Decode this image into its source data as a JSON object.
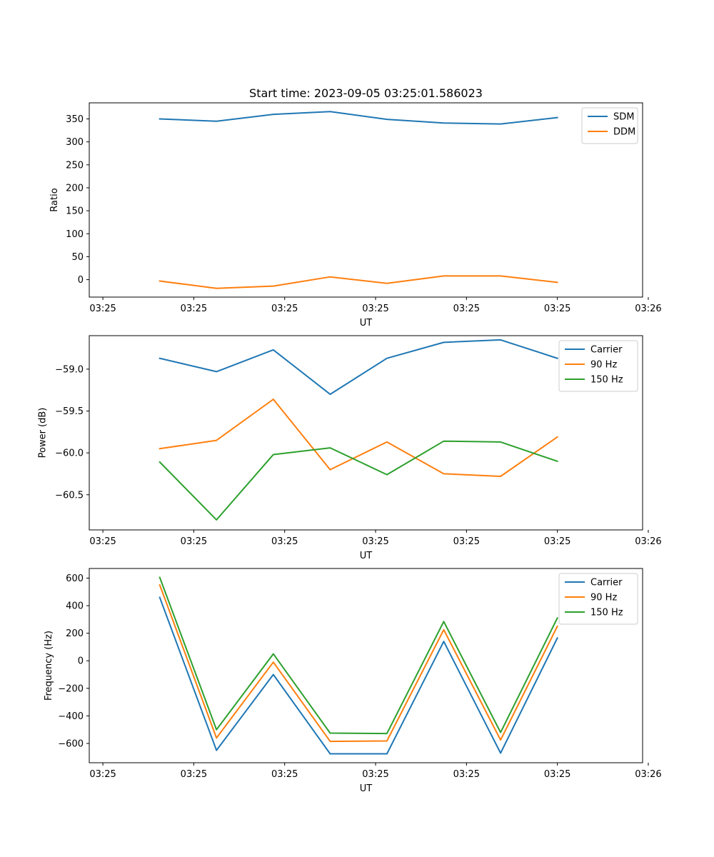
{
  "figure_title": "Start time: 2023-09-05 03:25:01.586023",
  "x_tick_labels": [
    "03:25",
    "03:25",
    "03:25",
    "03:25",
    "03:25",
    "03:25",
    "03:26"
  ],
  "colors": {
    "blue": "#1f77b4",
    "orange": "#ff7f0e",
    "green": "#2ca02c"
  },
  "chart_data": [
    {
      "type": "line",
      "title": "Start time: 2023-09-05 03:25:01.586023",
      "xlabel": "UT",
      "ylabel": "Ratio",
      "x": [
        0.5,
        1.0,
        1.5,
        2.0,
        2.5,
        3.0,
        3.5,
        4.0
      ],
      "xlim": [
        -0.12,
        4.75
      ],
      "ylim": [
        -38,
        385
      ],
      "yticks": [
        0,
        50,
        100,
        150,
        200,
        250,
        300,
        350
      ],
      "ytick_labels": [
        "0",
        "50",
        "100",
        "150",
        "200",
        "250",
        "300",
        "350"
      ],
      "legend_location": "upper right",
      "series": [
        {
          "name": "SDM",
          "color": "#1f77b4",
          "values": [
            350,
            345,
            360,
            366,
            349,
            341,
            339,
            353
          ]
        },
        {
          "name": "DDM",
          "color": "#ff7f0e",
          "values": [
            -3,
            -19,
            -14,
            6,
            -8,
            8,
            8,
            -6
          ]
        }
      ]
    },
    {
      "type": "line",
      "xlabel": "UT",
      "ylabel": "Power (dB)",
      "x": [
        0.5,
        1.0,
        1.5,
        2.0,
        2.5,
        3.0,
        3.5,
        4.0
      ],
      "xlim": [
        -0.12,
        4.75
      ],
      "ylim": [
        -60.92,
        -58.6
      ],
      "yticks": [
        -60.5,
        -60.0,
        -59.5,
        -59.0
      ],
      "ytick_labels": [
        "−60.5",
        "−60.0",
        "−59.5",
        "−59.0"
      ],
      "legend_location": "upper right",
      "series": [
        {
          "name": "Carrier",
          "color": "#1f77b4",
          "values": [
            -58.87,
            -59.03,
            -58.77,
            -59.3,
            -58.87,
            -58.68,
            -58.65,
            -58.87
          ]
        },
        {
          "name": "90 Hz",
          "color": "#ff7f0e",
          "values": [
            -59.95,
            -59.85,
            -59.36,
            -60.2,
            -59.87,
            -60.25,
            -60.28,
            -59.81
          ]
        },
        {
          "name": "150 Hz",
          "color": "#2ca02c",
          "values": [
            -60.11,
            -60.8,
            -60.02,
            -59.94,
            -60.26,
            -59.86,
            -59.87,
            -60.1
          ]
        }
      ]
    },
    {
      "type": "line",
      "xlabel": "UT",
      "ylabel": "Frequency (Hz)",
      "x": [
        0.5,
        1.0,
        1.5,
        2.0,
        2.5,
        3.0,
        3.5,
        4.0
      ],
      "xlim": [
        -0.12,
        4.75
      ],
      "ylim": [
        -740,
        670
      ],
      "yticks": [
        -600,
        -400,
        -200,
        0,
        200,
        400,
        600
      ],
      "ytick_labels": [
        "−600",
        "−400",
        "−200",
        "0",
        "200",
        "400",
        "600"
      ],
      "legend_location": "upper right",
      "series": [
        {
          "name": "Carrier",
          "color": "#1f77b4",
          "values": [
            460,
            -650,
            -100,
            -675,
            -675,
            140,
            -670,
            165
          ]
        },
        {
          "name": "90 Hz",
          "color": "#ff7f0e",
          "values": [
            550,
            -560,
            -10,
            -585,
            -582,
            225,
            -575,
            250
          ]
        },
        {
          "name": "150 Hz",
          "color": "#2ca02c",
          "values": [
            605,
            -500,
            50,
            -525,
            -528,
            285,
            -520,
            310
          ]
        }
      ]
    }
  ]
}
